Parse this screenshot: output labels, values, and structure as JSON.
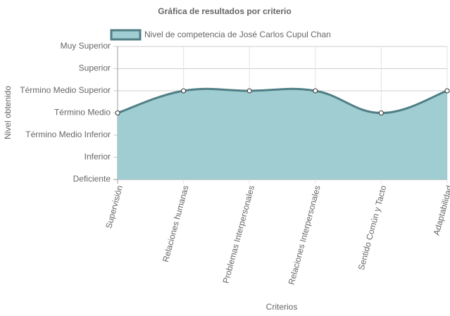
{
  "chart_data": {
    "type": "line",
    "title": "Gráfica de resultados por criterio",
    "x_label": "Criterios",
    "y_label": "Nivel obtenido",
    "categories": [
      "Supervisión",
      "Relaciones humanas",
      "Problemas Interpersonales",
      "Relaciones Interpersonales",
      "Sentido Común y Tacto",
      "Adaptabilidad"
    ],
    "series": [
      {
        "name": "Nivel de competencia de José Carlos Cupul Chan",
        "color": "#4f7e84",
        "fill": "#a0cdd1",
        "values": [
          3,
          4,
          4,
          4,
          3,
          4
        ]
      }
    ],
    "ylim": [
      0,
      6
    ],
    "yticks": [
      {
        "value": 0,
        "label": "Deficiente"
      },
      {
        "value": 1,
        "label": "Inferior"
      },
      {
        "value": 2,
        "label": "Término Medio Inferior"
      },
      {
        "value": 3,
        "label": "Término Medio"
      },
      {
        "value": 4,
        "label": "Término Medio Superior"
      },
      {
        "value": 5,
        "label": "Superior"
      },
      {
        "value": 6,
        "label": "Muy Superior"
      }
    ],
    "grid": true
  }
}
